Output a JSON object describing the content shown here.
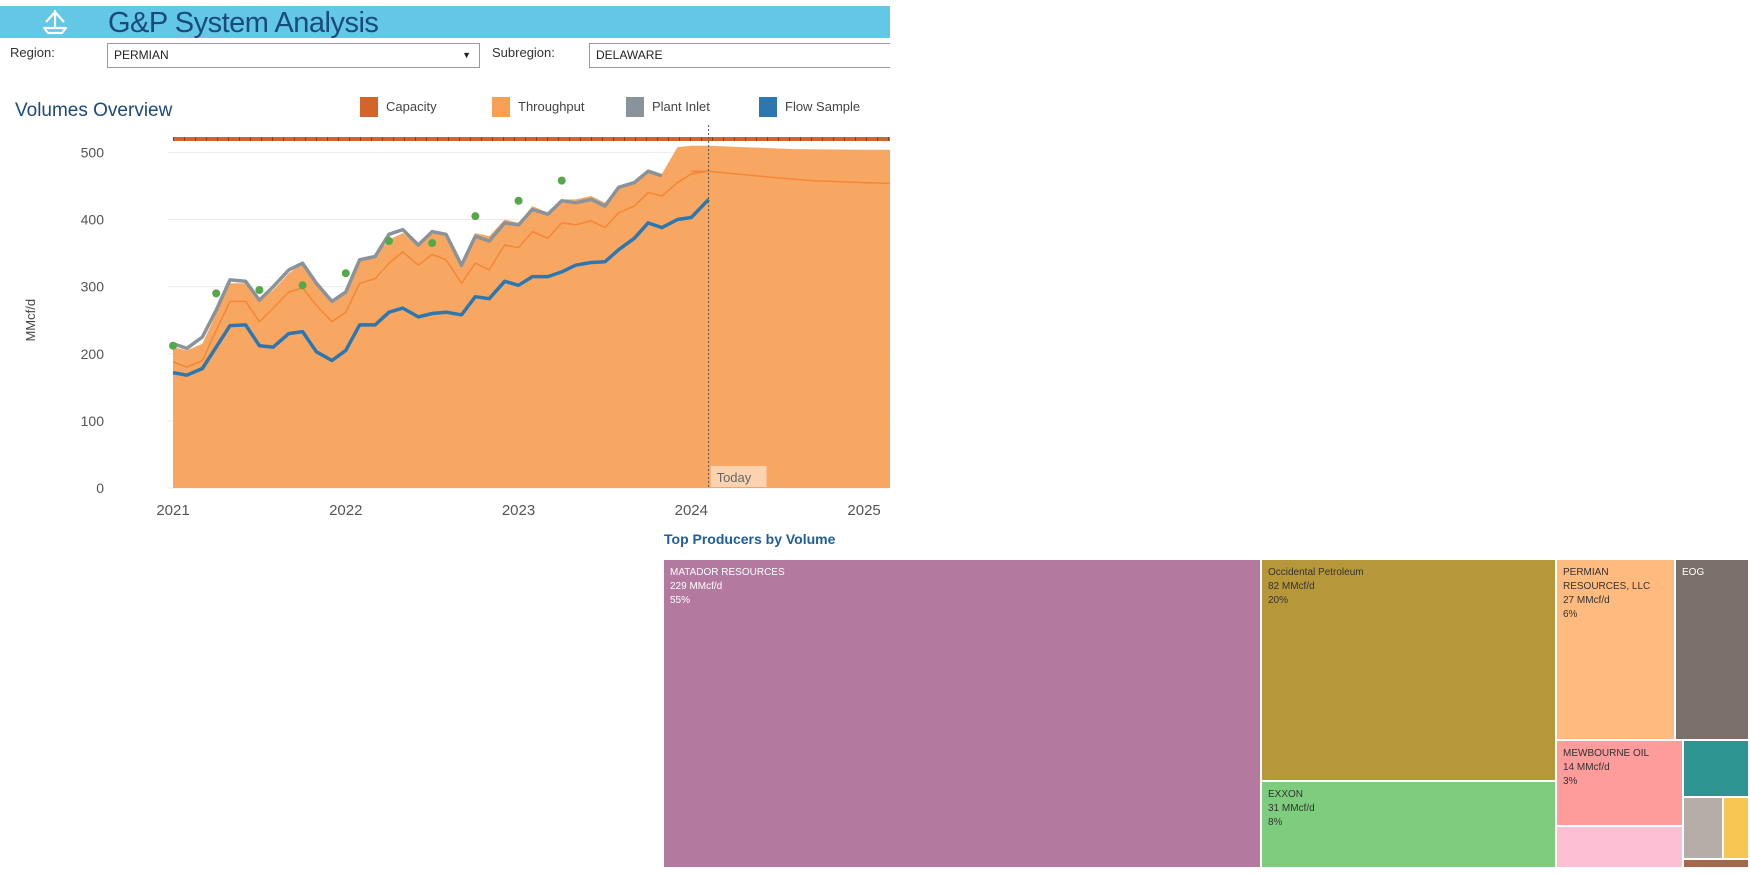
{
  "app": {
    "title": "G&P System Analysis"
  },
  "filters": {
    "region_label": "Region:",
    "region_value": "PERMIAN",
    "subregion_label": "Subregion:",
    "subregion_value": "DELAWARE"
  },
  "volumes": {
    "title": "Volumes Overview",
    "legend": [
      {
        "label": "Capacity",
        "color": "#d2642c"
      },
      {
        "label": "Throughput",
        "color": "#f7a055"
      },
      {
        "label": "Plant Inlet",
        "color": "#8a939a"
      },
      {
        "label": "Flow Sample",
        "color": "#2d77b0"
      }
    ],
    "today_label": "Today"
  },
  "chart_data": [
    {
      "type": "area",
      "title": "Volumes Overview",
      "ylabel": "MMcf/d",
      "ylim": [
        0,
        520
      ],
      "yticks": [
        0,
        100,
        200,
        300,
        400,
        500
      ],
      "xticks": [
        "2021",
        "2022",
        "2023",
        "2024",
        "2025"
      ],
      "x_domain": [
        2021.0,
        2025.15
      ],
      "today_x": 2024.1,
      "series": [
        {
          "name": "Capacity",
          "type": "line",
          "color": "#d2642c",
          "x": [
            2021.0,
            2025.15
          ],
          "values": [
            520,
            520
          ]
        },
        {
          "name": "Throughput",
          "type": "area",
          "color": "#f7a055",
          "x": [
            2021.0,
            2021.08,
            2021.17,
            2021.25,
            2021.33,
            2021.42,
            2021.5,
            2021.58,
            2021.67,
            2021.75,
            2021.83,
            2021.92,
            2022.0,
            2022.08,
            2022.17,
            2022.25,
            2022.33,
            2022.42,
            2022.5,
            2022.58,
            2022.67,
            2022.75,
            2022.83,
            2022.92,
            2023.0,
            2023.08,
            2023.17,
            2023.25,
            2023.33,
            2023.42,
            2023.5,
            2023.58,
            2023.67,
            2023.75,
            2023.83,
            2023.92,
            2024.0,
            2024.1,
            2024.3,
            2024.6,
            2025.0,
            2025.15
          ],
          "values": [
            210,
            205,
            215,
            260,
            305,
            305,
            280,
            295,
            320,
            335,
            305,
            275,
            290,
            340,
            345,
            370,
            380,
            362,
            382,
            378,
            335,
            380,
            375,
            400,
            395,
            420,
            410,
            430,
            430,
            435,
            425,
            450,
            455,
            475,
            468,
            508,
            510,
            510,
            508,
            505,
            504,
            504
          ]
        },
        {
          "name": "Throughput (forecast)",
          "type": "line",
          "color": "#f58636",
          "x": [
            2024.0,
            2024.1,
            2024.3,
            2024.5,
            2024.7,
            2025.0,
            2025.15
          ],
          "values": [
            472,
            472,
            467,
            462,
            458,
            455,
            454
          ]
        },
        {
          "name": "Plant Inlet",
          "type": "line",
          "color": "#8a939a",
          "x": [
            2021.0,
            2021.08,
            2021.17,
            2021.25,
            2021.33,
            2021.42,
            2021.5,
            2021.58,
            2021.67,
            2021.75,
            2021.83,
            2021.92,
            2022.0,
            2022.08,
            2022.17,
            2022.25,
            2022.33,
            2022.42,
            2022.5,
            2022.58,
            2022.67,
            2022.75,
            2022.83,
            2022.92,
            2023.0,
            2023.08,
            2023.17,
            2023.25,
            2023.33,
            2023.42,
            2023.5,
            2023.58,
            2023.67,
            2023.75,
            2023.83
          ],
          "values": [
            215,
            208,
            225,
            265,
            310,
            308,
            280,
            300,
            325,
            335,
            305,
            278,
            292,
            340,
            345,
            378,
            385,
            362,
            382,
            378,
            332,
            375,
            368,
            395,
            392,
            415,
            408,
            428,
            425,
            430,
            420,
            448,
            455,
            472,
            465
          ]
        },
        {
          "name": "Throughput line",
          "type": "line",
          "color": "#f58636",
          "x": [
            2021.0,
            2021.08,
            2021.17,
            2021.25,
            2021.33,
            2021.42,
            2021.5,
            2021.58,
            2021.67,
            2021.75,
            2021.83,
            2021.92,
            2022.0,
            2022.08,
            2022.17,
            2022.25,
            2022.33,
            2022.42,
            2022.5,
            2022.58,
            2022.67,
            2022.75,
            2022.83,
            2022.92,
            2023.0,
            2023.08,
            2023.17,
            2023.25,
            2023.33,
            2023.42,
            2023.5,
            2023.58,
            2023.67,
            2023.75,
            2023.83,
            2023.92,
            2024.0,
            2024.1
          ],
          "values": [
            188,
            180,
            190,
            235,
            278,
            278,
            248,
            268,
            292,
            298,
            272,
            248,
            262,
            305,
            312,
            335,
            352,
            332,
            348,
            340,
            305,
            335,
            325,
            362,
            358,
            382,
            372,
            395,
            392,
            398,
            388,
            410,
            420,
            440,
            435,
            455,
            468,
            472
          ]
        },
        {
          "name": "Flow Sample",
          "type": "line",
          "color": "#2d77b0",
          "x": [
            2021.0,
            2021.08,
            2021.17,
            2021.25,
            2021.33,
            2021.42,
            2021.5,
            2021.58,
            2021.67,
            2021.75,
            2021.83,
            2021.92,
            2022.0,
            2022.08,
            2022.17,
            2022.25,
            2022.33,
            2022.42,
            2022.5,
            2022.58,
            2022.67,
            2022.75,
            2022.83,
            2022.92,
            2023.0,
            2023.08,
            2023.17,
            2023.25,
            2023.33,
            2023.42,
            2023.5,
            2023.58,
            2023.67,
            2023.75,
            2023.83,
            2023.92,
            2024.0,
            2024.1
          ],
          "values": [
            172,
            168,
            178,
            210,
            242,
            243,
            212,
            210,
            230,
            233,
            203,
            190,
            205,
            243,
            243,
            262,
            268,
            255,
            260,
            262,
            258,
            285,
            282,
            308,
            302,
            315,
            315,
            322,
            332,
            336,
            337,
            355,
            372,
            395,
            388,
            400,
            403,
            430
          ]
        },
        {
          "name": "Samples",
          "type": "scatter",
          "color": "#55a84a",
          "x": [
            2021.0,
            2021.25,
            2021.5,
            2021.75,
            2022.0,
            2022.25,
            2022.5,
            2022.75,
            2023.0,
            2023.25
          ],
          "values": [
            212,
            290,
            295,
            302,
            320,
            368,
            365,
            405,
            428,
            458
          ]
        }
      ]
    },
    {
      "type": "treemap",
      "title": "Top Producers by Volume",
      "unit": "MMcf/d",
      "items": [
        {
          "name": "MATADOR RESOURCES",
          "value": 229,
          "value_label": "229 MMcf/d",
          "share": "55%",
          "color": "#b3799e"
        },
        {
          "name": "Occidental Petroleum",
          "value": 82,
          "value_label": "82 MMcf/d",
          "share": "20%",
          "color": "#b6983a"
        },
        {
          "name": "EXXON",
          "value": 31,
          "value_label": "31 MMcf/d",
          "share": "8%",
          "color": "#7ecd7e"
        },
        {
          "name": "PERMIAN RESOURCES, LLC",
          "value": 27,
          "value_label": "27 MMcf/d",
          "share": "6%",
          "color": "#ffbb7f"
        },
        {
          "name": "EOG",
          "value": null,
          "value_label": "",
          "share": "",
          "color": "#7a6f6b"
        },
        {
          "name": "MEWBOURNE OIL",
          "value": 14,
          "value_label": "14 MMcf/d",
          "share": "3%",
          "color": "#fe9b9b"
        },
        {
          "name": "",
          "value": null,
          "value_label": "",
          "share": "",
          "color": "#fdbfd3"
        },
        {
          "name": "",
          "value": null,
          "value_label": "",
          "share": "",
          "color": "#2e9593"
        },
        {
          "name": "",
          "value": null,
          "value_label": "",
          "share": "",
          "color": "#b6aca8"
        },
        {
          "name": "",
          "value": null,
          "value_label": "",
          "share": "",
          "color": "#f7c653"
        },
        {
          "name": "",
          "value": null,
          "value_label": "",
          "share": "",
          "color": "#a5684d"
        }
      ]
    }
  ]
}
